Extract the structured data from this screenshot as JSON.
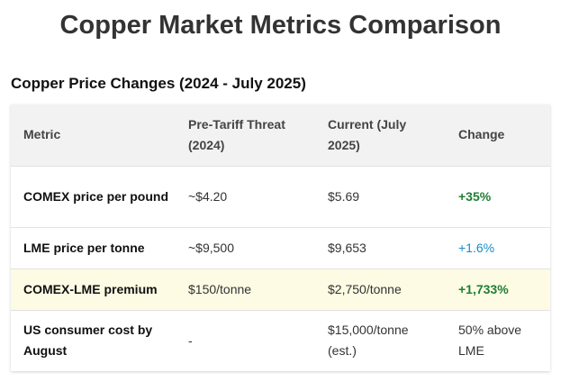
{
  "page": {
    "title": "Copper Market Metrics Comparison"
  },
  "section": {
    "title": "Copper Price Changes (2024 - July 2025)"
  },
  "table": {
    "headers": [
      "Metric",
      "Pre-Tariff Threat (2024)",
      "Current (July 2025)",
      "Change"
    ],
    "rows": [
      {
        "metric": "COMEX price per pound",
        "pre": "~$4.20",
        "current": "$5.69",
        "change": "+35%",
        "change_style": "green"
      },
      {
        "metric": "LME price per tonne",
        "pre": "~$9,500",
        "current": "$9,653",
        "change": "+1.6%",
        "change_style": "blue"
      },
      {
        "metric": "COMEX-LME premium",
        "pre": "$150/tonne",
        "current": "$2,750/tonne",
        "change": "+1,733%",
        "change_style": "green",
        "highlighted": true
      },
      {
        "metric": "US consumer cost by August",
        "pre": "-",
        "current": "$15,000/tonne (est.)",
        "change": "50% above LME",
        "change_style": "plain"
      }
    ]
  },
  "colors": {
    "positive": "#1e7e34",
    "neutral_positive": "#1a8cc8",
    "highlight_row": "#fdfbe4",
    "header_bg": "#f2f2f2"
  }
}
